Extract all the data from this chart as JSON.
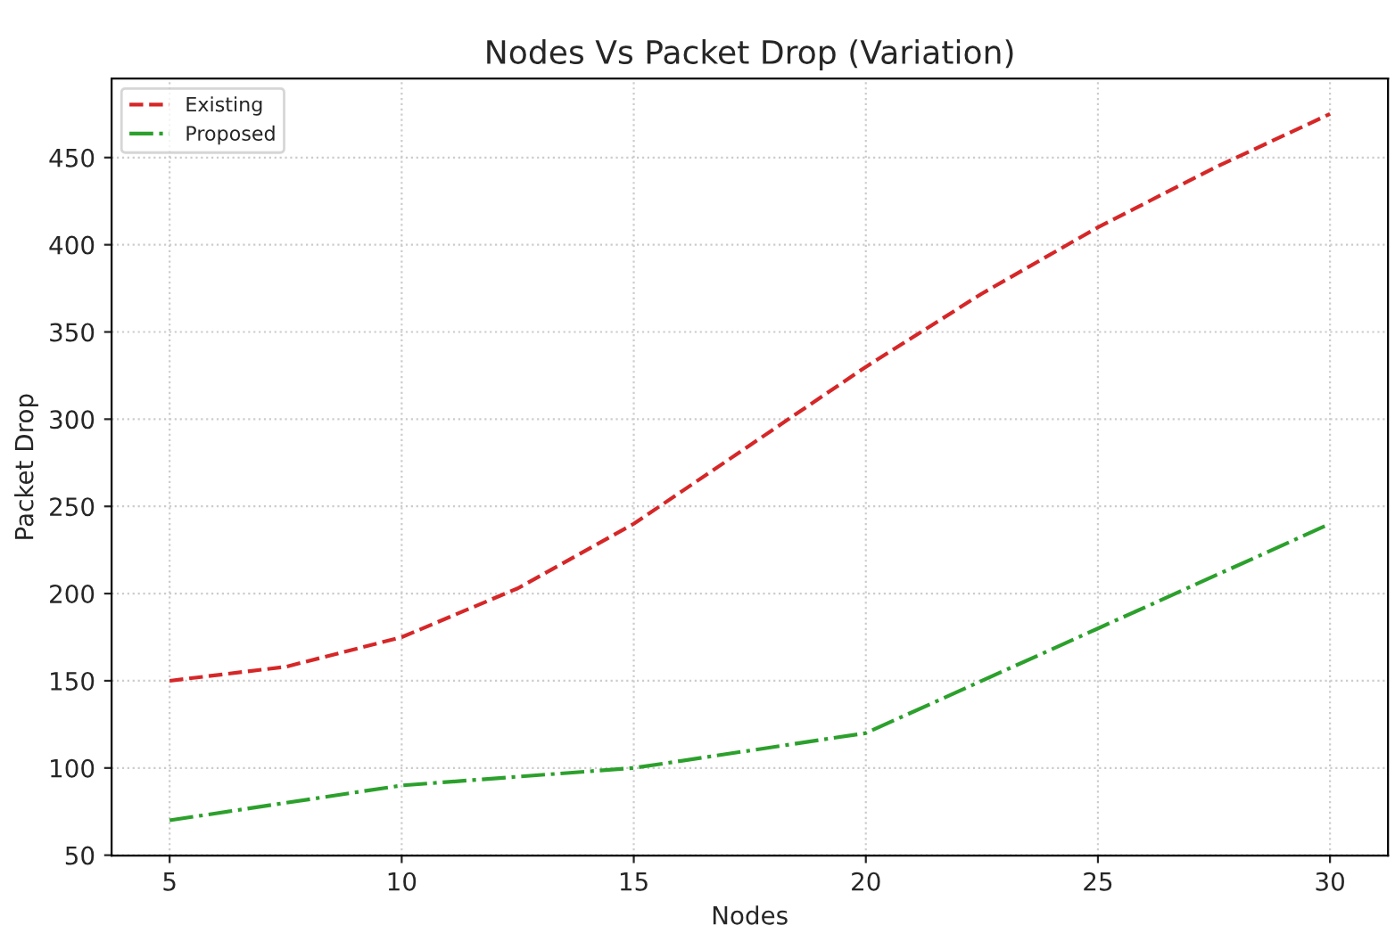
{
  "chart_data": {
    "type": "line",
    "title": "Nodes Vs Packet Drop (Variation)",
    "xlabel": "Nodes",
    "ylabel": "Packet Drop",
    "xlim": [
      3.75,
      31.25
    ],
    "xticks": [
      5,
      10,
      15,
      20,
      25,
      30
    ],
    "ylim": [
      49.75,
      495.25
    ],
    "yticks": [
      50,
      100,
      150,
      200,
      250,
      300,
      350,
      400,
      450
    ],
    "grid": true,
    "legend": "top left",
    "series": [
      {
        "name": "Existing",
        "color": "#d62728",
        "line_style": "dashed",
        "x": [
          5,
          7.5,
          10,
          12.5,
          15,
          17.5,
          20,
          22.5,
          25,
          27.5,
          30
        ],
        "values": [
          150,
          158,
          175,
          203,
          240,
          285,
          330,
          372,
          410,
          444,
          475
        ]
      },
      {
        "name": "Proposed",
        "color": "#2ca02c",
        "line_style": "dashdot",
        "x": [
          5,
          10,
          15,
          20,
          25,
          30
        ],
        "values": [
          70,
          90,
          100,
          120,
          180,
          240
        ]
      }
    ]
  }
}
